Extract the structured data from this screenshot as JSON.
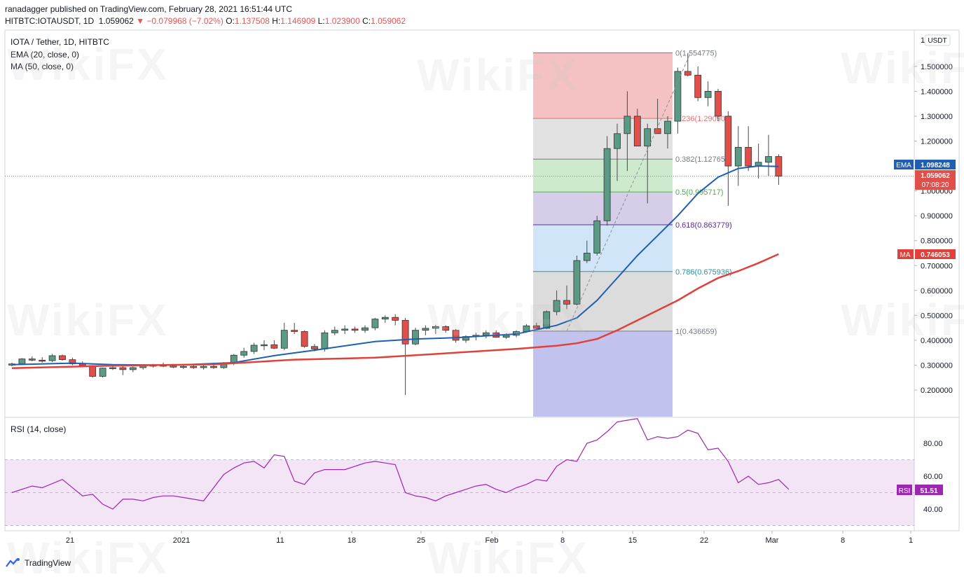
{
  "header": {
    "publisher_line": "ranadagger published on TradingView.com, February 28, 2021 16:51:44 UTC",
    "symbol": "HITBTC:IOTAUSDT, 1D",
    "last": "1.059062",
    "change": "▼ −0.079968 (−7.02%)",
    "o_label": "O:",
    "o_value": "1.137508",
    "h_label": "H:",
    "h_value": "1.146909",
    "l_label": "L:",
    "l_value": "1.023900",
    "c_label": "C:",
    "c_value": "1.059062"
  },
  "legend": {
    "title": "IOTA / Tether, 1D, HITBTC",
    "ema": "EMA (20, close, 0)",
    "ma": "MA (50, close, 0)",
    "rsi": "RSI (14, close)"
  },
  "badges": {
    "currency": "USDT",
    "ema_tag": "EMA",
    "ema_value": "1.098248",
    "price_value": "1.059062",
    "countdown": "07:08:20",
    "ma_tag": "MA",
    "ma_value": "0.746053",
    "rsi_tag": "RSI",
    "rsi_value": "51.51"
  },
  "footer": {
    "brand": "TradingView"
  },
  "watermark": "WikiFX",
  "colors": {
    "up": "#5b9a84",
    "down": "#e04f4a",
    "ema": "#1e5fb0",
    "ma": "#e0413a",
    "rsi": "#9c27b0"
  },
  "chart_data": {
    "type": "candlestick",
    "y_axis_ticks": [
      "0.200000",
      "0.300000",
      "0.400000",
      "0.500000",
      "0.600000",
      "0.700000",
      "0.800000",
      "0.900000",
      "1.000000",
      "1.100000",
      "1.200000",
      "1.300000",
      "1.400000",
      "1.500000"
    ],
    "y_axis_top_label": "1",
    "x_axis_labels": [
      "21",
      "2021",
      "11",
      "18",
      "25",
      "Feb",
      "8",
      "15",
      "22",
      "Mar",
      "8",
      "1"
    ],
    "ohlc": [
      [
        0.3,
        0.31,
        0.295,
        0.305
      ],
      [
        0.305,
        0.328,
        0.3,
        0.325
      ],
      [
        0.325,
        0.335,
        0.315,
        0.32
      ],
      [
        0.32,
        0.332,
        0.31,
        0.318
      ],
      [
        0.318,
        0.345,
        0.312,
        0.338
      ],
      [
        0.338,
        0.342,
        0.318,
        0.322
      ],
      [
        0.322,
        0.33,
        0.3,
        0.305
      ],
      [
        0.305,
        0.315,
        0.295,
        0.298
      ],
      [
        0.298,
        0.3,
        0.25,
        0.255
      ],
      [
        0.255,
        0.29,
        0.25,
        0.288
      ],
      [
        0.288,
        0.3,
        0.28,
        0.29
      ],
      [
        0.29,
        0.298,
        0.26,
        0.282
      ],
      [
        0.282,
        0.295,
        0.272,
        0.29
      ],
      [
        0.29,
        0.3,
        0.282,
        0.298
      ],
      [
        0.298,
        0.305,
        0.29,
        0.3
      ],
      [
        0.3,
        0.31,
        0.292,
        0.298
      ],
      [
        0.298,
        0.305,
        0.288,
        0.292
      ],
      [
        0.292,
        0.3,
        0.285,
        0.295
      ],
      [
        0.295,
        0.302,
        0.285,
        0.29
      ],
      [
        0.29,
        0.3,
        0.282,
        0.295
      ],
      [
        0.295,
        0.31,
        0.285,
        0.29
      ],
      [
        0.29,
        0.312,
        0.285,
        0.308
      ],
      [
        0.308,
        0.345,
        0.3,
        0.34
      ],
      [
        0.34,
        0.37,
        0.33,
        0.355
      ],
      [
        0.355,
        0.39,
        0.345,
        0.38
      ],
      [
        0.38,
        0.4,
        0.36,
        0.382
      ],
      [
        0.382,
        0.4,
        0.365,
        0.368
      ],
      [
        0.368,
        0.47,
        0.36,
        0.44
      ],
      [
        0.44,
        0.47,
        0.425,
        0.435
      ],
      [
        0.435,
        0.44,
        0.37,
        0.375
      ],
      [
        0.375,
        0.385,
        0.355,
        0.365
      ],
      [
        0.365,
        0.44,
        0.355,
        0.43
      ],
      [
        0.43,
        0.455,
        0.42,
        0.44
      ],
      [
        0.44,
        0.46,
        0.425,
        0.445
      ],
      [
        0.445,
        0.455,
        0.43,
        0.44
      ],
      [
        0.44,
        0.46,
        0.43,
        0.45
      ],
      [
        0.45,
        0.49,
        0.44,
        0.485
      ],
      [
        0.485,
        0.5,
        0.47,
        0.492
      ],
      [
        0.492,
        0.505,
        0.46,
        0.48
      ],
      [
        0.48,
        0.49,
        0.18,
        0.385
      ],
      [
        0.385,
        0.45,
        0.38,
        0.44
      ],
      [
        0.44,
        0.46,
        0.42,
        0.448
      ],
      [
        0.448,
        0.462,
        0.425,
        0.455
      ],
      [
        0.455,
        0.46,
        0.43,
        0.44
      ],
      [
        0.44,
        0.445,
        0.39,
        0.4
      ],
      [
        0.4,
        0.42,
        0.39,
        0.415
      ],
      [
        0.415,
        0.43,
        0.4,
        0.42
      ],
      [
        0.42,
        0.44,
        0.408,
        0.43
      ],
      [
        0.43,
        0.44,
        0.41,
        0.412
      ],
      [
        0.412,
        0.428,
        0.405,
        0.42
      ],
      [
        0.42,
        0.44,
        0.412,
        0.435
      ],
      [
        0.435,
        0.465,
        0.43,
        0.458
      ],
      [
        0.458,
        0.47,
        0.44,
        0.448
      ],
      [
        0.448,
        0.52,
        0.445,
        0.515
      ],
      [
        0.515,
        0.6,
        0.5,
        0.56
      ],
      [
        0.56,
        0.62,
        0.525,
        0.545
      ],
      [
        0.545,
        0.74,
        0.54,
        0.72
      ],
      [
        0.72,
        0.8,
        0.71,
        0.75
      ],
      [
        0.75,
        0.9,
        0.74,
        0.88
      ],
      [
        0.88,
        1.22,
        0.86,
        1.17
      ],
      [
        1.17,
        1.27,
        1.04,
        1.23
      ],
      [
        1.23,
        1.4,
        1.08,
        1.3
      ],
      [
        1.3,
        1.33,
        1.18,
        1.18
      ],
      [
        1.18,
        1.27,
        0.95,
        1.25
      ],
      [
        1.25,
        1.37,
        1.24,
        1.23
      ],
      [
        1.23,
        1.3,
        1.17,
        1.28
      ],
      [
        1.28,
        1.495,
        1.23,
        1.48
      ],
      [
        1.48,
        1.554,
        1.46,
        1.465
      ],
      [
        1.465,
        1.5,
        1.36,
        1.375
      ],
      [
        1.375,
        1.44,
        1.34,
        1.4
      ],
      [
        1.4,
        1.41,
        1.28,
        1.3
      ],
      [
        1.3,
        1.32,
        0.94,
        1.1
      ],
      [
        1.1,
        1.26,
        1.02,
        1.175
      ],
      [
        1.175,
        1.26,
        1.08,
        1.1
      ],
      [
        1.1,
        1.19,
        1.05,
        1.115
      ],
      [
        1.115,
        1.225,
        1.06,
        1.138
      ],
      [
        1.138,
        1.147,
        1.024,
        1.059
      ]
    ],
    "ema20": [
      [
        0,
        0.302
      ],
      [
        6,
        0.308
      ],
      [
        10,
        0.302
      ],
      [
        16,
        0.3
      ],
      [
        22,
        0.31
      ],
      [
        26,
        0.338
      ],
      [
        30,
        0.36
      ],
      [
        36,
        0.395
      ],
      [
        40,
        0.405
      ],
      [
        44,
        0.41
      ],
      [
        50,
        0.425
      ],
      [
        54,
        0.46
      ],
      [
        56,
        0.49
      ],
      [
        58,
        0.56
      ],
      [
        60,
        0.65
      ],
      [
        62,
        0.74
      ],
      [
        64,
        0.82
      ],
      [
        66,
        0.9
      ],
      [
        68,
        0.99
      ],
      [
        70,
        1.055
      ],
      [
        72,
        1.09
      ],
      [
        74,
        1.1
      ],
      [
        76,
        1.098
      ]
    ],
    "ma50": [
      [
        0,
        0.288
      ],
      [
        10,
        0.298
      ],
      [
        20,
        0.303
      ],
      [
        28,
        0.322
      ],
      [
        36,
        0.33
      ],
      [
        42,
        0.345
      ],
      [
        50,
        0.365
      ],
      [
        54,
        0.378
      ],
      [
        56,
        0.388
      ],
      [
        58,
        0.405
      ],
      [
        60,
        0.44
      ],
      [
        62,
        0.48
      ],
      [
        64,
        0.52
      ],
      [
        66,
        0.56
      ],
      [
        68,
        0.608
      ],
      [
        70,
        0.65
      ],
      [
        72,
        0.678
      ],
      [
        74,
        0.71
      ],
      [
        76,
        0.746
      ]
    ],
    "fibonacci": [
      {
        "ratio": "0",
        "price": 1.554775,
        "label": "0(1.554775)",
        "color": "#787b86"
      },
      {
        "ratio": "0.236",
        "price": 1.2909,
        "label": "0.236(1.290900)",
        "color": "#e57373"
      },
      {
        "ratio": "0.382",
        "price": 1.127655,
        "label": "0.382(1.127655)",
        "color": "#787b86"
      },
      {
        "ratio": "0.5",
        "price": 0.995717,
        "label": "0.5(0.995717)",
        "color": "#4caf50"
      },
      {
        "ratio": "0.618",
        "price": 0.863779,
        "label": "0.618(0.863779)",
        "color": "#5b2d8f"
      },
      {
        "ratio": "0.786",
        "price": 0.675936,
        "label": "0.786(0.675936)",
        "color": "#2196a6"
      },
      {
        "ratio": "1",
        "price": 0.436659,
        "label": "1(0.436659)",
        "color": "#787b86"
      }
    ],
    "rsi": {
      "ticks": [
        "40.00",
        "60.00",
        "80.00"
      ],
      "band": [
        30,
        70
      ],
      "values": [
        [
          0,
          50
        ],
        [
          2,
          54
        ],
        [
          3,
          53
        ],
        [
          5,
          58
        ],
        [
          7,
          48
        ],
        [
          8,
          49
        ],
        [
          9,
          43
        ],
        [
          10,
          40
        ],
        [
          11,
          46
        ],
        [
          12,
          46
        ],
        [
          13,
          45
        ],
        [
          14,
          47
        ],
        [
          15,
          48
        ],
        [
          16,
          48
        ],
        [
          17,
          47
        ],
        [
          19,
          45
        ],
        [
          21,
          61
        ],
        [
          22,
          65
        ],
        [
          23,
          68
        ],
        [
          24,
          69
        ],
        [
          25,
          65
        ],
        [
          26,
          73
        ],
        [
          27,
          72
        ],
        [
          28,
          57
        ],
        [
          29,
          55
        ],
        [
          30,
          62
        ],
        [
          31,
          64
        ],
        [
          32,
          64
        ],
        [
          33,
          64
        ],
        [
          34,
          66
        ],
        [
          35,
          68
        ],
        [
          36,
          69
        ],
        [
          37,
          68
        ],
        [
          38,
          67
        ],
        [
          39,
          50
        ],
        [
          40,
          48
        ],
        [
          41,
          47
        ],
        [
          42,
          45
        ],
        [
          43,
          48
        ],
        [
          44,
          50
        ],
        [
          45,
          52
        ],
        [
          46,
          54
        ],
        [
          47,
          55
        ],
        [
          48,
          52
        ],
        [
          49,
          50
        ],
        [
          50,
          53
        ],
        [
          51,
          55
        ],
        [
          52,
          58
        ],
        [
          53,
          57
        ],
        [
          54,
          66
        ],
        [
          55,
          70
        ],
        [
          56,
          69
        ],
        [
          57,
          80
        ],
        [
          58,
          82
        ],
        [
          59,
          87
        ],
        [
          60,
          93
        ],
        [
          61,
          94
        ],
        [
          62,
          95
        ],
        [
          63,
          82
        ],
        [
          64,
          84
        ],
        [
          65,
          83
        ],
        [
          66,
          84
        ],
        [
          67,
          88
        ],
        [
          68,
          86
        ],
        [
          69,
          76
        ],
        [
          70,
          77
        ],
        [
          71,
          69
        ],
        [
          72,
          56
        ],
        [
          73,
          60
        ],
        [
          74,
          55
        ],
        [
          75,
          56
        ],
        [
          76,
          58
        ],
        [
          77,
          52
        ]
      ]
    }
  }
}
